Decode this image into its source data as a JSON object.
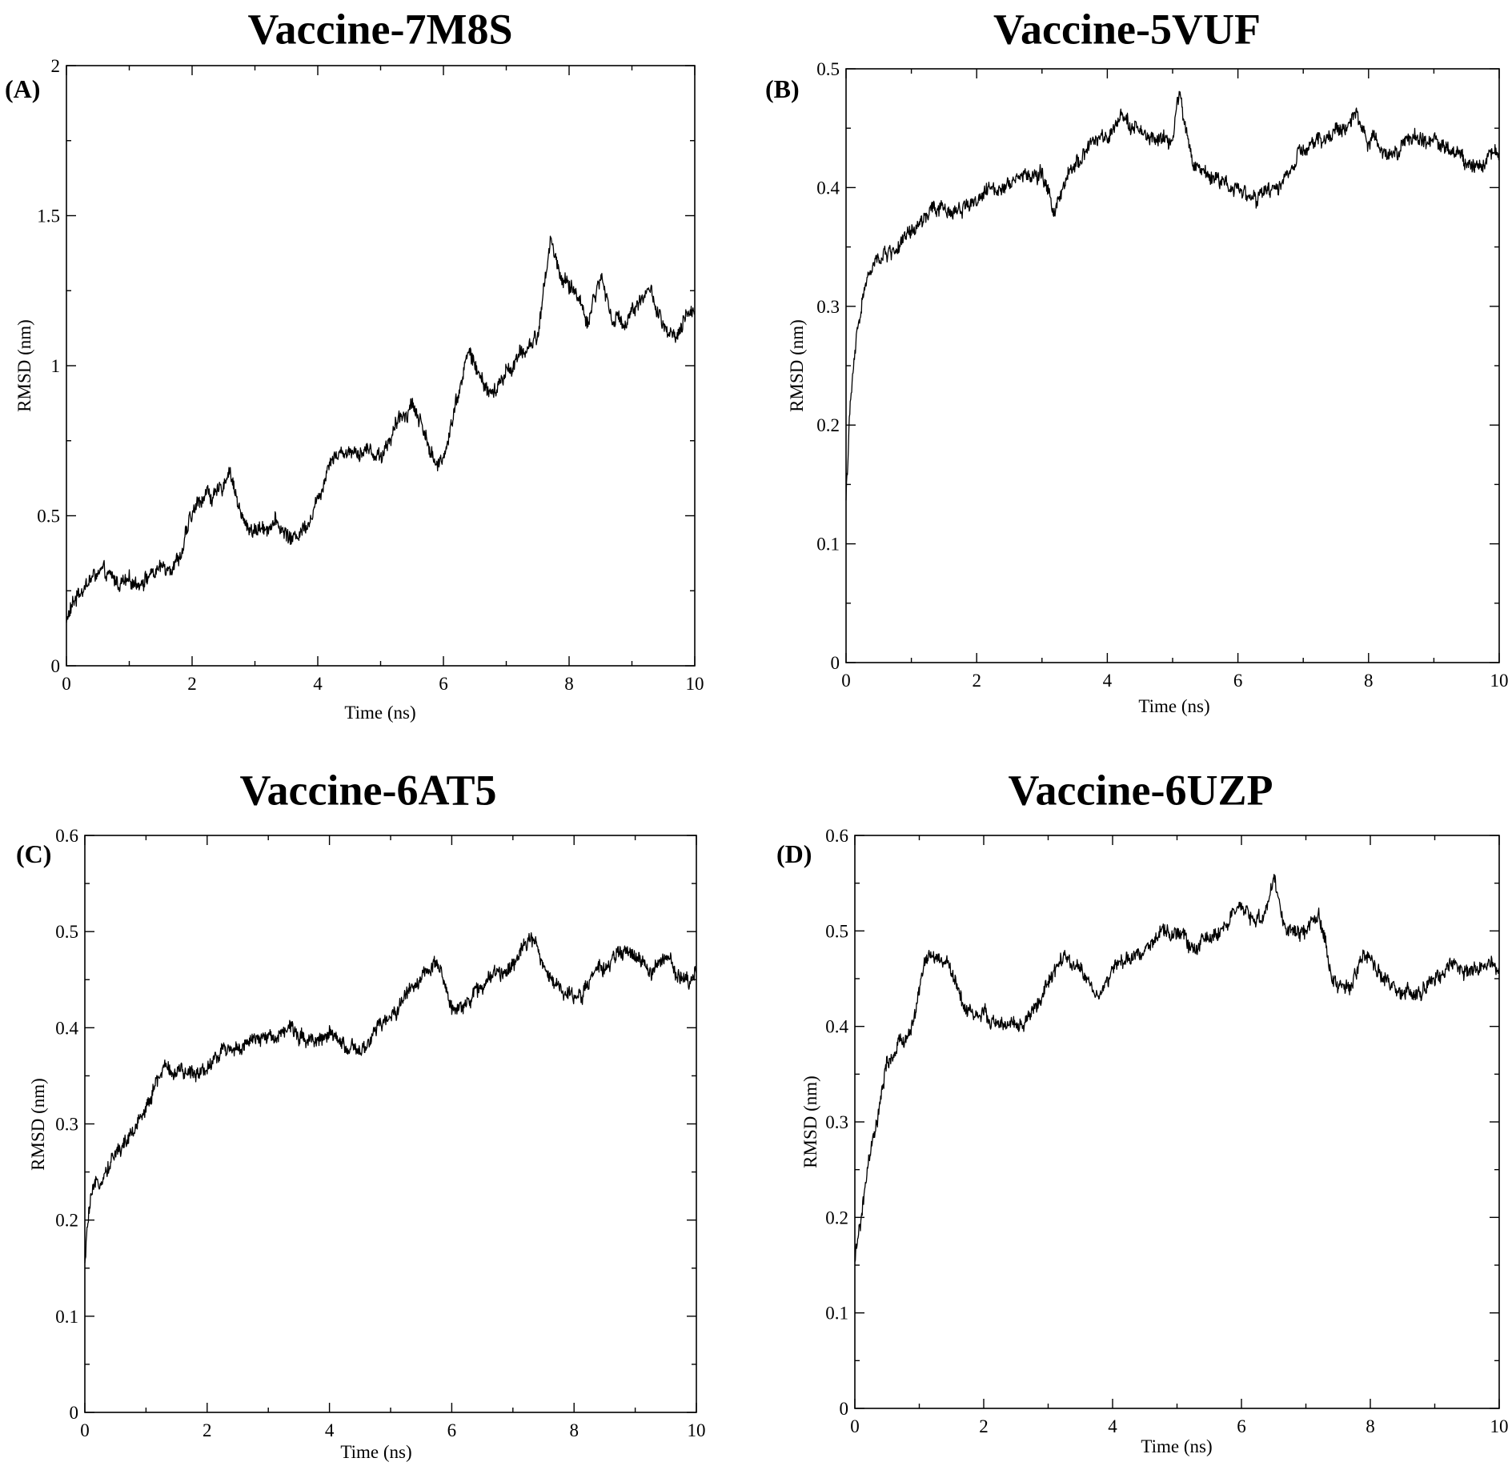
{
  "chart_data": [
    {
      "type": "line",
      "panel_label": "(A)",
      "title": "Vaccine-7M8S",
      "xlabel": "Time (ns)",
      "ylabel": "RMSD (nm)",
      "xlim": [
        0,
        10
      ],
      "ylim": [
        0,
        2
      ],
      "x_ticks": [
        "0",
        "2",
        "4",
        "6",
        "8",
        "10"
      ],
      "y_ticks": [
        "0",
        "0.5",
        "1",
        "1.5",
        "2"
      ],
      "grid": false,
      "series": [
        {
          "color": "#000000",
          "x": [
            0,
            0.2,
            0.5,
            0.8,
            1.0,
            1.4,
            1.8,
            2.0,
            2.2,
            2.4,
            2.6,
            2.8,
            3.0,
            3.3,
            3.6,
            3.8,
            4.0,
            4.2,
            4.5,
            4.8,
            5.0,
            5.2,
            5.5,
            5.7,
            5.9,
            6.0,
            6.2,
            6.4,
            6.6,
            6.8,
            7.0,
            7.3,
            7.5,
            7.7,
            7.9,
            8.1,
            8.3,
            8.5,
            8.7,
            8.9,
            9.1,
            9.3,
            9.5,
            9.7,
            9.9,
            10.0
          ],
          "y": [
            0.15,
            0.25,
            0.31,
            0.28,
            0.27,
            0.31,
            0.36,
            0.5,
            0.58,
            0.56,
            0.66,
            0.48,
            0.45,
            0.48,
            0.42,
            0.47,
            0.55,
            0.7,
            0.72,
            0.72,
            0.7,
            0.78,
            0.88,
            0.78,
            0.65,
            0.7,
            0.88,
            1.05,
            0.95,
            0.9,
            0.98,
            1.05,
            1.1,
            1.42,
            1.28,
            1.25,
            1.15,
            1.3,
            1.15,
            1.15,
            1.22,
            1.25,
            1.12,
            1.08,
            1.17,
            1.2
          ]
        }
      ]
    },
    {
      "type": "line",
      "panel_label": "(B)",
      "title": "Vaccine-5VUF",
      "xlabel": "Time (ns)",
      "ylabel": "RMSD (nm)",
      "xlim": [
        0,
        10
      ],
      "ylim": [
        0,
        0.5
      ],
      "x_ticks": [
        "0",
        "2",
        "4",
        "6",
        "8",
        "10"
      ],
      "y_ticks": [
        "0",
        "0.1",
        "0.2",
        "0.3",
        "0.4",
        "0.5"
      ],
      "grid": false,
      "series": [
        {
          "color": "#000000",
          "x": [
            0,
            0.05,
            0.1,
            0.2,
            0.3,
            0.5,
            0.8,
            1.0,
            1.3,
            1.6,
            2.0,
            2.3,
            2.6,
            3.0,
            3.2,
            3.5,
            3.8,
            4.0,
            4.3,
            4.6,
            5.0,
            5.1,
            5.3,
            5.6,
            6.0,
            6.3,
            6.6,
            7.0,
            7.3,
            7.6,
            7.8,
            8.0,
            8.3,
            8.6,
            9.0,
            9.3,
            9.6,
            10.0
          ],
          "y": [
            0.14,
            0.2,
            0.24,
            0.29,
            0.32,
            0.34,
            0.35,
            0.36,
            0.38,
            0.38,
            0.39,
            0.4,
            0.41,
            0.41,
            0.38,
            0.42,
            0.44,
            0.44,
            0.46,
            0.44,
            0.44,
            0.48,
            0.42,
            0.41,
            0.4,
            0.39,
            0.4,
            0.43,
            0.44,
            0.45,
            0.46,
            0.44,
            0.43,
            0.44,
            0.44,
            0.43,
            0.42,
            0.43
          ]
        }
      ]
    },
    {
      "type": "line",
      "panel_label": "(C)",
      "title": "Vaccine-6AT5",
      "xlabel": "Time (ns)",
      "ylabel": "RMSD (nm)",
      "xlim": [
        0,
        10
      ],
      "ylim": [
        0,
        0.6
      ],
      "x_ticks": [
        "0",
        "2",
        "4",
        "6",
        "8",
        "10"
      ],
      "y_ticks": [
        "0",
        "0.1",
        "0.2",
        "0.3",
        "0.4",
        "0.5",
        "0.6"
      ],
      "grid": false,
      "series": [
        {
          "color": "#000000",
          "x": [
            0,
            0.05,
            0.1,
            0.3,
            0.5,
            0.8,
            1.0,
            1.3,
            1.6,
            2.0,
            2.3,
            2.6,
            3.0,
            3.3,
            3.6,
            4.0,
            4.3,
            4.5,
            4.8,
            5.0,
            5.3,
            5.6,
            5.8,
            6.0,
            6.3,
            6.6,
            6.9,
            7.0,
            7.3,
            7.5,
            7.8,
            8.0,
            8.3,
            8.6,
            8.9,
            9.2,
            9.5,
            9.8,
            10.0
          ],
          "y": [
            0.15,
            0.2,
            0.22,
            0.25,
            0.27,
            0.29,
            0.32,
            0.36,
            0.35,
            0.36,
            0.38,
            0.38,
            0.39,
            0.4,
            0.39,
            0.39,
            0.38,
            0.37,
            0.4,
            0.41,
            0.44,
            0.46,
            0.46,
            0.42,
            0.43,
            0.45,
            0.46,
            0.47,
            0.5,
            0.46,
            0.44,
            0.43,
            0.45,
            0.47,
            0.48,
            0.46,
            0.47,
            0.45,
            0.46
          ]
        }
      ]
    },
    {
      "type": "line",
      "panel_label": "(D)",
      "title": "Vaccine-6UZP",
      "xlabel": "Time (ns)",
      "ylabel": "RMSD (nm)",
      "xlim": [
        0,
        10
      ],
      "ylim": [
        0,
        0.6
      ],
      "x_ticks": [
        "0",
        "2",
        "4",
        "6",
        "8",
        "10"
      ],
      "y_ticks": [
        "0",
        "0.1",
        "0.2",
        "0.3",
        "0.4",
        "0.5",
        "0.6"
      ],
      "grid": false,
      "series": [
        {
          "color": "#000000",
          "x": [
            0,
            0.05,
            0.1,
            0.2,
            0.35,
            0.5,
            0.7,
            0.9,
            1.0,
            1.1,
            1.3,
            1.5,
            1.7,
            2.0,
            2.3,
            2.6,
            2.9,
            3.2,
            3.5,
            3.8,
            4.0,
            4.3,
            4.6,
            5.0,
            5.3,
            5.6,
            6.0,
            6.3,
            6.5,
            6.7,
            7.0,
            7.2,
            7.4,
            7.7,
            7.9,
            8.1,
            8.4,
            8.7,
            9.0,
            9.3,
            9.6,
            10.0
          ],
          "y": [
            0.15,
            0.18,
            0.2,
            0.25,
            0.3,
            0.36,
            0.38,
            0.4,
            0.44,
            0.47,
            0.47,
            0.46,
            0.42,
            0.41,
            0.4,
            0.4,
            0.43,
            0.47,
            0.46,
            0.43,
            0.46,
            0.47,
            0.49,
            0.5,
            0.48,
            0.5,
            0.52,
            0.51,
            0.55,
            0.5,
            0.5,
            0.52,
            0.45,
            0.44,
            0.48,
            0.46,
            0.44,
            0.43,
            0.45,
            0.46,
            0.46,
            0.46
          ]
        }
      ]
    }
  ]
}
